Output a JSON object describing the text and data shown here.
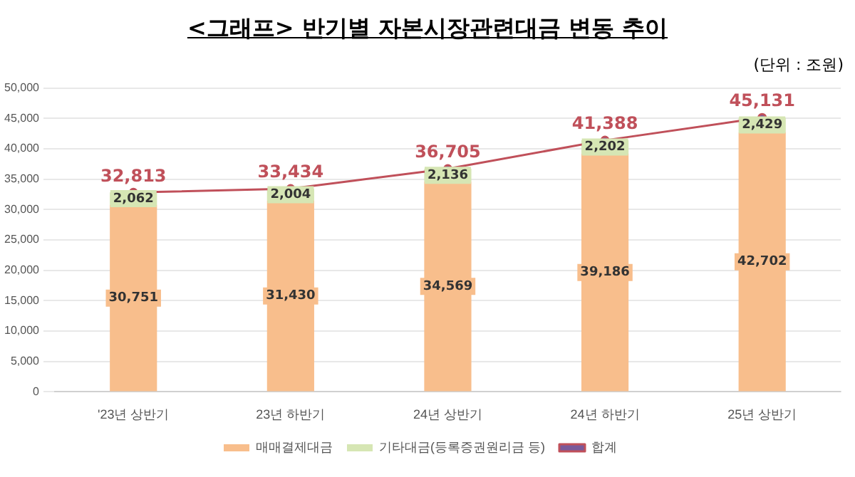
{
  "chart_data": {
    "type": "bar",
    "title": "<그래프> 반기별 자본시장관련대금 변동 추이",
    "annotations": [
      "(단위 : 조원)"
    ],
    "categories": [
      "'23년 상반기",
      "23년 하반기",
      "24년 상반기",
      "24년 하반기",
      "25년 상반기"
    ],
    "stacked": true,
    "grid": "y",
    "legend": "bottom",
    "marker": "circle",
    "ylim": [
      0,
      50000
    ],
    "yticks": [
      {
        "value": 0,
        "label": "0"
      },
      {
        "value": 5000,
        "label": "5,000"
      },
      {
        "value": 10000,
        "label": "10,000"
      },
      {
        "value": 15000,
        "label": "15,000"
      },
      {
        "value": 20000,
        "label": "20,000"
      },
      {
        "value": 25000,
        "label": "25,000"
      },
      {
        "value": 30000,
        "label": "30,000"
      },
      {
        "value": 35000,
        "label": "35,000"
      },
      {
        "value": 40000,
        "label": "40,000"
      },
      {
        "value": 45000,
        "label": "45,000"
      },
      {
        "value": 50000,
        "label": "50,000"
      }
    ],
    "series": [
      {
        "name": "매매결제대금",
        "color": "#f8be8c",
        "values": [
          30751,
          31430,
          34569,
          39186,
          42702
        ],
        "value_labels": [
          "30,751",
          "31,430",
          "34,569",
          "39,186",
          "42,702"
        ]
      },
      {
        "name": "기타대금(등록증권원리금 등)",
        "color": "#d6e6b4",
        "values": [
          2062,
          2004,
          2136,
          2202,
          2429
        ],
        "value_labels": [
          "2,062",
          "2,004",
          "2,136",
          "2,202",
          "2,429"
        ]
      },
      {
        "name": "합계",
        "type": "line",
        "color": "#c0505a",
        "values": [
          32813,
          33434,
          36705,
          41388,
          45131
        ],
        "value_labels": [
          "32,813",
          "33,434",
          "36,705",
          "41,388",
          "45,131"
        ]
      }
    ]
  }
}
